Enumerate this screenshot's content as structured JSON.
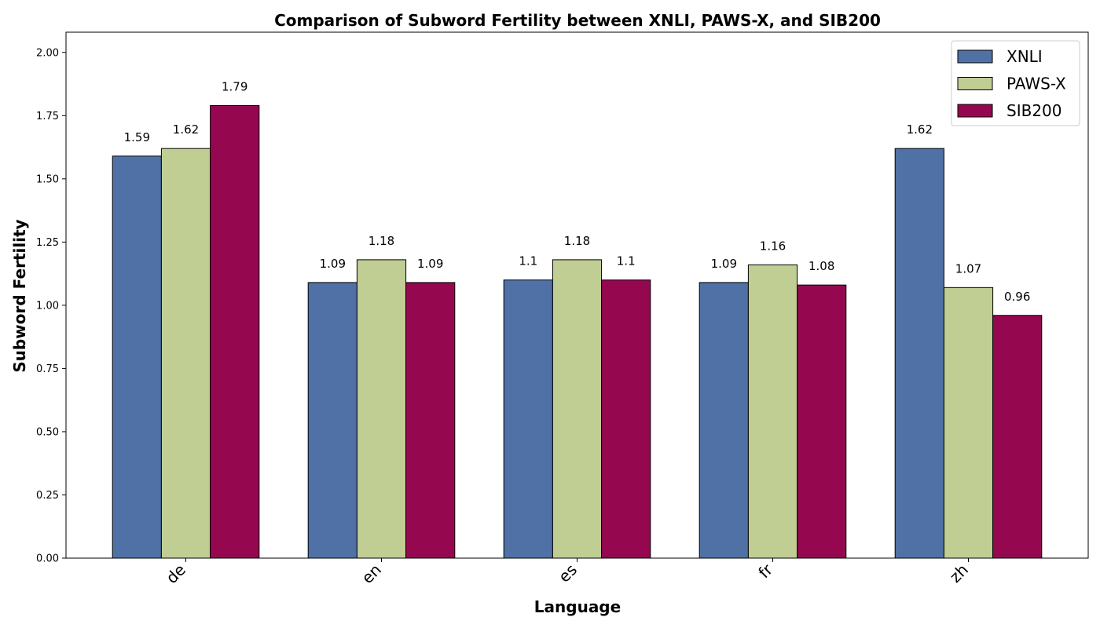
{
  "chart_data": {
    "type": "bar",
    "title": "Comparison of Subword Fertility between XNLI, PAWS-X, and SIB200",
    "xlabel": "Language",
    "ylabel": "Subword Fertility",
    "categories": [
      "de",
      "en",
      "es",
      "fr",
      "zh"
    ],
    "ylim": [
      0,
      2.08
    ],
    "yticks": [
      "0.00",
      "0.25",
      "0.50",
      "0.75",
      "1.00",
      "1.25",
      "1.50",
      "1.75",
      "2.00"
    ],
    "ytick_values": [
      0,
      0.25,
      0.5,
      0.75,
      1.0,
      1.25,
      1.5,
      1.75,
      2.0
    ],
    "legend_position": "top-right",
    "grid": false,
    "series": [
      {
        "name": "XNLI",
        "color": "#4f71a6",
        "values": [
          1.59,
          1.09,
          1.1,
          1.09,
          1.62
        ],
        "labels": [
          "1.59",
          "1.09",
          "1.1",
          "1.09",
          "1.62"
        ]
      },
      {
        "name": "PAWS-X",
        "color": "#c0cd93",
        "values": [
          1.62,
          1.18,
          1.18,
          1.16,
          1.07
        ],
        "labels": [
          "1.62",
          "1.18",
          "1.18",
          "1.16",
          "1.07"
        ]
      },
      {
        "name": "SIB200",
        "color": "#950850",
        "values": [
          1.79,
          1.09,
          1.1,
          1.08,
          0.96
        ],
        "labels": [
          "1.79",
          "1.09",
          "1.1",
          "1.08",
          "0.96"
        ]
      }
    ]
  }
}
